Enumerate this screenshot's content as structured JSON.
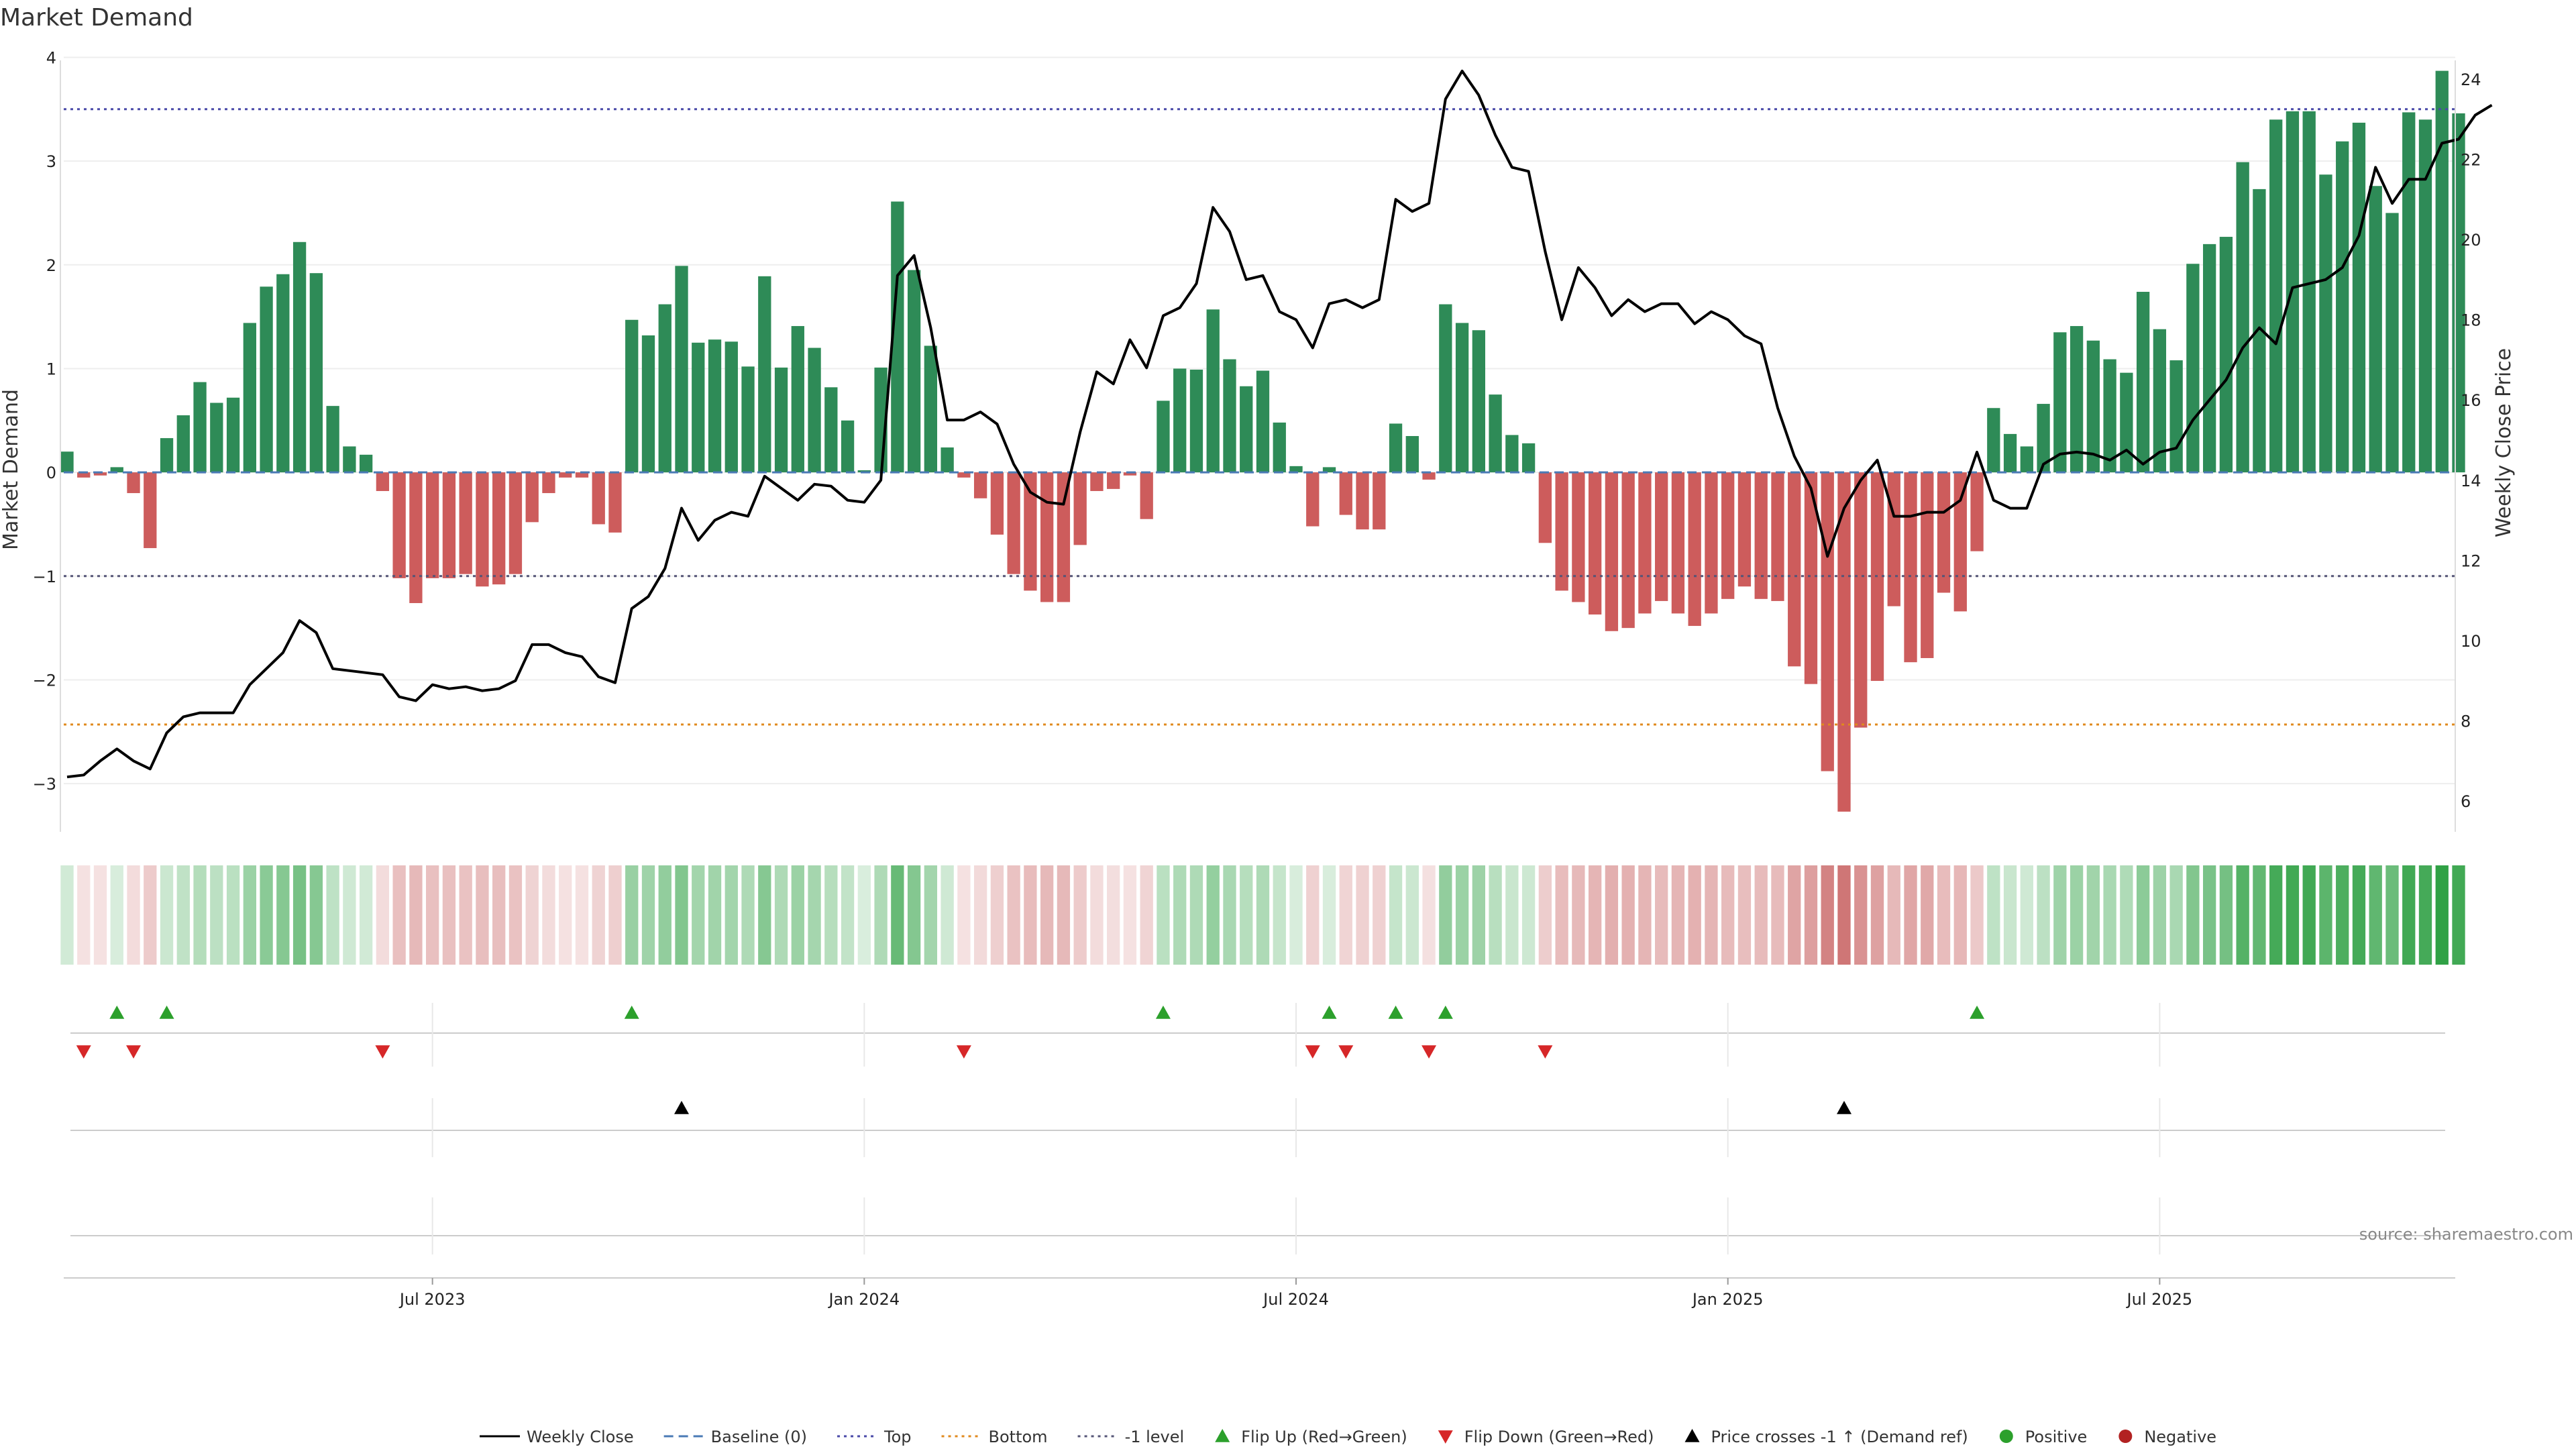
{
  "colors": {
    "positive_bar": "#2e8b57",
    "negative_bar": "#cd5c5c",
    "price_line": "#000000",
    "top_line": "#4a4aa8",
    "bottom_line": "#e08a1e",
    "minus1_line": "#555577",
    "flip_up": "#2ca02c",
    "flip_down": "#d62728",
    "cross_marker": "#000000",
    "positive_dot": "#2ca02c",
    "negative_dot": "#b22222"
  },
  "chart_data": {
    "type": "bar",
    "title": "Market Demand",
    "ylabel": "Market Demand",
    "y2label": "Weekly Close Price",
    "ylim": [
      -3.4,
      4.1
    ],
    "y2lim": [
      5.4,
      24.8
    ],
    "yticks": [
      {
        "v": 4,
        "label": "4"
      },
      {
        "v": 3,
        "label": "3"
      },
      {
        "v": 2,
        "label": "2"
      },
      {
        "v": 1,
        "label": "1"
      },
      {
        "v": 0,
        "label": "0"
      },
      {
        "v": -1,
        "label": "−1"
      },
      {
        "v": -2,
        "label": "−2"
      },
      {
        "v": -3,
        "label": "−3"
      }
    ],
    "y2ticks": [
      {
        "v": 24,
        "label": "24"
      },
      {
        "v": 22,
        "label": "22"
      },
      {
        "v": 20,
        "label": "20"
      },
      {
        "v": 18,
        "label": "18"
      },
      {
        "v": 16,
        "label": "16"
      },
      {
        "v": 14,
        "label": "14"
      },
      {
        "v": 12,
        "label": "12"
      },
      {
        "v": 10,
        "label": "10"
      },
      {
        "v": 8,
        "label": "8"
      },
      {
        "v": 6,
        "label": "6"
      }
    ],
    "xticks": [
      {
        "index": 22,
        "label": "Jul 2023"
      },
      {
        "index": 48,
        "label": "Jan 2024"
      },
      {
        "index": 74,
        "label": "Jul 2024"
      },
      {
        "index": 100,
        "label": "Jan 2025"
      },
      {
        "index": 126,
        "label": "Jul 2025"
      }
    ],
    "levels": {
      "baseline": 0,
      "top": 3.5,
      "bottom": -2.43,
      "minus1": -1
    },
    "demand": [
      0.2,
      -0.05,
      -0.03,
      0.05,
      -0.2,
      -0.73,
      0.33,
      0.55,
      0.87,
      0.67,
      0.72,
      1.44,
      1.79,
      1.91,
      2.22,
      1.92,
      0.64,
      0.25,
      0.17,
      -0.18,
      -1.02,
      -1.26,
      -1.02,
      -1.02,
      -0.98,
      -1.1,
      -1.08,
      -0.98,
      -0.48,
      -0.2,
      -0.05,
      -0.05,
      -0.5,
      -0.58,
      1.47,
      1.32,
      1.62,
      1.99,
      1.25,
      1.28,
      1.26,
      1.02,
      1.89,
      1.01,
      1.41,
      1.2,
      0.82,
      0.5,
      0.02,
      1.01,
      2.61,
      1.95,
      1.22,
      0.24,
      -0.05,
      -0.25,
      -0.6,
      -0.98,
      -1.14,
      -1.25,
      -1.25,
      -0.7,
      -0.18,
      -0.16,
      -0.03,
      -0.45,
      0.69,
      1.0,
      0.99,
      1.57,
      1.09,
      0.83,
      0.98,
      0.48,
      0.06,
      -0.52,
      0.05,
      -0.41,
      -0.55,
      -0.55,
      0.47,
      0.35,
      -0.07,
      1.62,
      1.44,
      1.37,
      0.75,
      0.36,
      0.28,
      -0.68,
      -1.14,
      -1.25,
      -1.37,
      -1.53,
      -1.5,
      -1.36,
      -1.24,
      -1.36,
      -1.48,
      -1.36,
      -1.22,
      -1.1,
      -1.22,
      -1.24,
      -1.87,
      -2.04,
      -2.88,
      -3.27,
      -2.46,
      -2.01,
      -1.29,
      -1.83,
      -1.79,
      -1.16,
      -1.34,
      -0.76,
      0.62,
      0.37,
      0.25,
      0.66,
      1.35,
      1.41,
      1.27,
      1.09,
      0.96,
      1.74,
      1.38,
      1.08,
      2.01,
      2.2,
      2.27,
      2.99,
      2.73,
      3.4,
      3.48,
      3.48,
      2.87,
      3.19,
      3.37,
      2.76,
      2.5,
      3.47,
      3.4,
      3.87,
      3.46
    ],
    "price": [
      6.6,
      6.65,
      7.0,
      7.3,
      7.0,
      6.8,
      7.7,
      8.1,
      8.2,
      8.2,
      8.2,
      8.9,
      9.3,
      9.7,
      10.5,
      10.2,
      9.3,
      9.25,
      9.2,
      9.15,
      8.6,
      8.5,
      8.9,
      8.8,
      8.85,
      8.75,
      8.8,
      9.0,
      9.9,
      9.9,
      9.7,
      9.6,
      9.1,
      8.95,
      10.8,
      11.1,
      11.8,
      13.3,
      12.5,
      13.0,
      13.2,
      13.1,
      14.1,
      13.8,
      13.5,
      13.9,
      13.85,
      13.5,
      13.45,
      14.0,
      19.1,
      19.6,
      17.8,
      15.5,
      15.5,
      15.7,
      15.4,
      14.4,
      13.7,
      13.45,
      13.4,
      15.2,
      16.7,
      16.4,
      17.5,
      16.8,
      18.1,
      18.3,
      18.9,
      20.8,
      20.2,
      19.0,
      19.1,
      18.2,
      18.0,
      17.3,
      18.4,
      18.5,
      18.3,
      18.5,
      21.0,
      20.7,
      20.9,
      23.5,
      24.2,
      23.6,
      22.6,
      21.8,
      21.7,
      19.7,
      18.0,
      19.3,
      18.8,
      18.1,
      18.5,
      18.2,
      18.4,
      18.4,
      17.9,
      18.2,
      18.0,
      17.6,
      17.4,
      15.8,
      14.6,
      13.8,
      12.1,
      13.3,
      14.0,
      14.5,
      13.1,
      13.1,
      13.2,
      13.2,
      13.5,
      14.7,
      13.5,
      13.3,
      13.3,
      14.4,
      14.65,
      14.7,
      14.65,
      14.5,
      14.75,
      14.4,
      14.7,
      14.8,
      15.5,
      16.0,
      16.5,
      17.3,
      17.8,
      17.4,
      18.8,
      18.9,
      19.0,
      19.3,
      20.1,
      21.8,
      20.9,
      21.5,
      21.5,
      22.4,
      22.5,
      23.1,
      23.35
    ]
  },
  "markers": {
    "flip_up": [
      3,
      6,
      34,
      66,
      76,
      80,
      83,
      115
    ],
    "flip_down": [
      1,
      4,
      19,
      54,
      75,
      77,
      82,
      89
    ],
    "cross_up": [
      37,
      107
    ]
  },
  "legend": [
    {
      "key": "price",
      "label": "Weekly Close",
      "kind": "line-solid"
    },
    {
      "key": "baseline",
      "label": "Baseline (0)",
      "kind": "line-dashed"
    },
    {
      "key": "top",
      "label": "Top",
      "kind": "line-dotted-top"
    },
    {
      "key": "bottom",
      "label": "Bottom",
      "kind": "line-dotted-bottom"
    },
    {
      "key": "minus1",
      "label": "-1 level",
      "kind": "line-dotted-minus1"
    },
    {
      "key": "flip_up",
      "label": "Flip Up (Red→Green)",
      "kind": "tri-up-green"
    },
    {
      "key": "flip_down",
      "label": "Flip Down (Green→Red)",
      "kind": "tri-down-red"
    },
    {
      "key": "cross",
      "label": "Price crosses -1 ↑ (Demand ref)",
      "kind": "tri-up-black"
    },
    {
      "key": "positive",
      "label": "Positive",
      "kind": "dot-green"
    },
    {
      "key": "negative",
      "label": "Negative",
      "kind": "dot-red"
    }
  ],
  "source": "source: sharemaestro.com"
}
